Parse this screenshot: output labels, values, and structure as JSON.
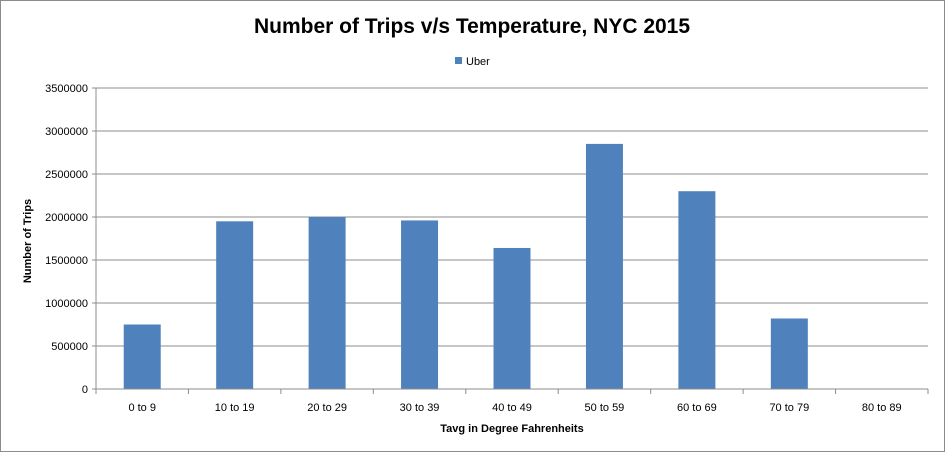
{
  "chart_data": {
    "type": "bar",
    "title": "Number of Trips v/s Temperature, NYC 2015",
    "xlabel": "Tavg  in Degree Fahrenheits",
    "ylabel": "Number of Trips",
    "categories": [
      "0 to 9",
      "10 to 19",
      "20 to 29",
      "30 to 39",
      "40 to 49",
      "50 to 59",
      "60 to 69",
      "70 to 79",
      "80 to 89"
    ],
    "series": [
      {
        "name": "Uber",
        "color": "#4f81bd",
        "values": [
          750000,
          1950000,
          2000000,
          1960000,
          1640000,
          2850000,
          2300000,
          820000,
          0
        ]
      }
    ],
    "yticks": [
      "0",
      "500000",
      "1000000",
      "1500000",
      "2000000",
      "2500000",
      "3000000",
      "3500000"
    ],
    "ylim": [
      0,
      3500000
    ],
    "grid": true,
    "legend": "top-center"
  }
}
